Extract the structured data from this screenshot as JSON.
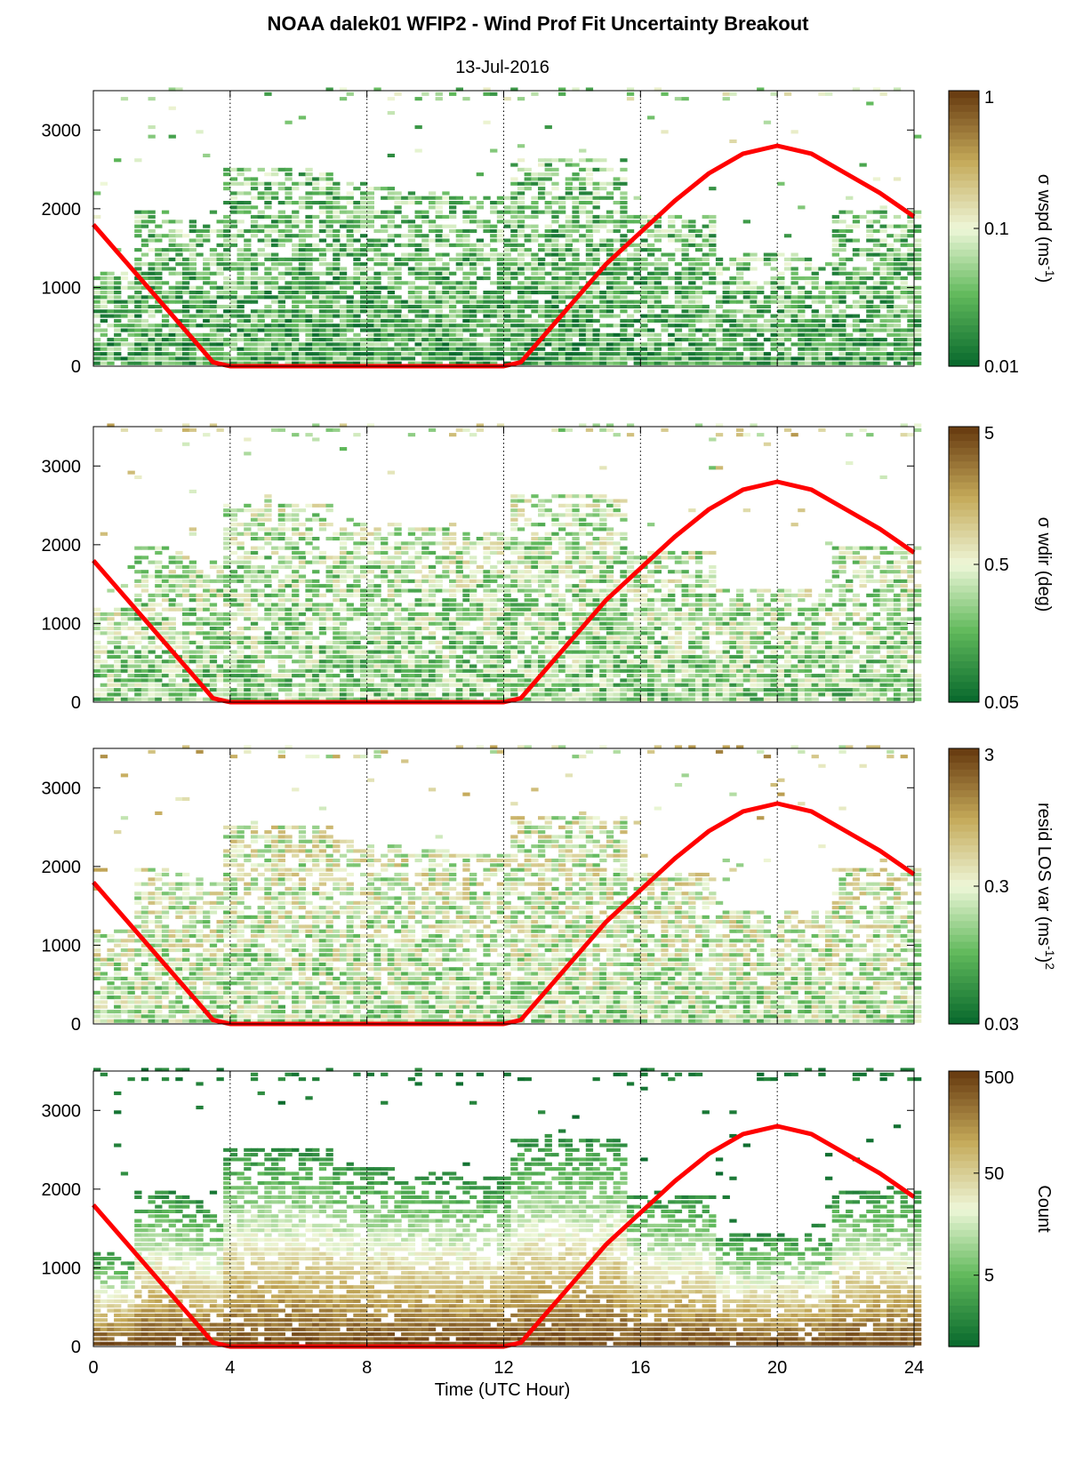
{
  "title": "NOAA dalek01 WFIP2 - Wind Prof Fit Uncertainty Breakout",
  "subtitle": "13-Jul-2016",
  "xlabel": "Time (UTC Hour)",
  "colors": {
    "low": "#0b6b2e",
    "mid_green": "#5fb85a",
    "pale": "#eef7d8",
    "tan": "#c5aa5a",
    "high": "#6a3e12",
    "sun_curve": "#ff0000"
  },
  "chart_data": [
    {
      "type": "heatmap",
      "name": "sigma-wspd",
      "colorbar_label_parts": [
        "σ wspd (ms",
        "-1",
        ")"
      ],
      "colorbar_ticks": [
        "0.01",
        "0.1",
        "1"
      ],
      "clim": [
        0.01,
        1
      ],
      "scale": "log",
      "bias": 0.25
    },
    {
      "type": "heatmap",
      "name": "sigma-wdir",
      "colorbar_label_parts": [
        "σ wdir (deg)"
      ],
      "colorbar_ticks": [
        "0.05",
        "0.5",
        "5"
      ],
      "clim": [
        0.05,
        5
      ],
      "scale": "log",
      "bias": 0.38
    },
    {
      "type": "heatmap",
      "name": "resid-los-var",
      "colorbar_label_parts": [
        "resid LOS var (ms",
        "-1",
        ")",
        "2"
      ],
      "colorbar_ticks": [
        "0.03",
        "0.3",
        "3"
      ],
      "clim": [
        0.03,
        3
      ],
      "scale": "log",
      "bias": 0.45
    },
    {
      "type": "heatmap",
      "name": "count",
      "colorbar_label_parts": [
        "Count"
      ],
      "colorbar_ticks": [
        "5",
        "50",
        "500"
      ],
      "clim": [
        1,
        500
      ],
      "scale": "log",
      "bias": 0.6
    }
  ],
  "shared_axes": {
    "x_ticks": [
      0,
      4,
      8,
      12,
      16,
      20,
      24
    ],
    "x_tick_labels": [
      "0",
      "4",
      "8",
      "12",
      "16",
      "20",
      "24"
    ],
    "xlim": [
      0,
      24
    ],
    "y_ticks": [
      0,
      1000,
      2000,
      3000
    ],
    "y_tick_labels": [
      "0",
      "1000",
      "2000",
      "3000"
    ],
    "ylim": [
      0,
      3500
    ],
    "x_grid_dotted": [
      4,
      8,
      12,
      16,
      20
    ],
    "show_x_tick_labels_on": "bottom-panel"
  },
  "sun_curve": {
    "x": [
      0,
      1,
      2,
      3,
      3.5,
      4,
      8,
      12,
      12.5,
      13,
      14,
      15,
      16,
      17,
      18,
      19,
      20,
      21,
      22,
      23,
      24
    ],
    "y": [
      1800,
      1300,
      800,
      300,
      50,
      0,
      0,
      0,
      50,
      300,
      800,
      1300,
      1700,
      2100,
      2450,
      2700,
      2800,
      2700,
      2450,
      2200,
      1900
    ]
  }
}
